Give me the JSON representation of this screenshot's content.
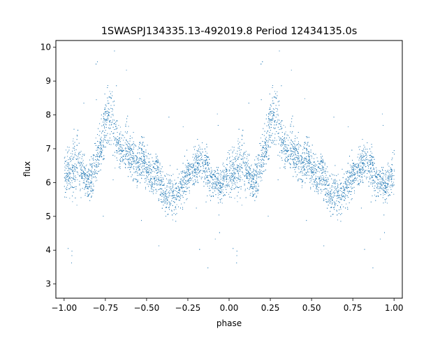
{
  "chart_data": {
    "type": "scatter",
    "title": "1SWASPJ134335.13-492019.8 Period 12434135.0s",
    "xlabel": "phase",
    "ylabel": "flux",
    "xlim": [
      -1.05,
      1.05
    ],
    "ylim": [
      2.58,
      10.2
    ],
    "x_ticks": [
      -1.0,
      -0.75,
      -0.5,
      -0.25,
      0.0,
      0.25,
      0.5,
      0.75,
      1.0
    ],
    "x_tick_labels": [
      "−1.00",
      "−0.75",
      "−0.50",
      "−0.25",
      "0.00",
      "0.25",
      "0.50",
      "0.75",
      "1.00"
    ],
    "y_ticks": [
      3,
      4,
      5,
      6,
      7,
      8,
      9,
      10
    ],
    "y_tick_labels": [
      "3",
      "4",
      "5",
      "6",
      "7",
      "8",
      "9",
      "10"
    ],
    "grid": false,
    "legend": "none",
    "marker_color": "#1f77b4",
    "profile": {
      "description_phase": [
        0.0,
        0.02,
        0.05,
        0.08,
        0.11,
        0.14,
        0.17,
        0.2,
        0.23,
        0.26,
        0.29,
        0.32,
        0.35,
        0.38,
        0.41,
        0.44,
        0.47,
        0.5,
        0.53,
        0.56,
        0.59,
        0.62,
        0.65,
        0.68,
        0.71,
        0.74,
        0.77,
        0.8,
        0.83,
        0.86,
        0.89,
        0.92,
        0.95,
        0.98,
        1.0
      ],
      "median_flux": [
        6.2,
        6.3,
        6.4,
        6.6,
        6.3,
        6.0,
        6.2,
        6.8,
        7.3,
        7.9,
        8.0,
        7.2,
        7.0,
        7.1,
        6.7,
        6.5,
        6.8,
        6.4,
        6.1,
        6.4,
        5.9,
        5.7,
        5.6,
        5.5,
        5.9,
        6.1,
        6.4,
        6.5,
        6.6,
        6.4,
        6.1,
        6.0,
        5.9,
        6.2,
        6.2
      ],
      "spread": [
        0.55,
        0.6,
        0.7,
        0.7,
        0.6,
        0.5,
        0.6,
        0.6,
        0.7,
        0.7,
        0.8,
        0.6,
        0.6,
        0.6,
        0.6,
        0.5,
        0.6,
        0.5,
        0.5,
        0.6,
        0.5,
        0.55,
        0.6,
        0.55,
        0.5,
        0.5,
        0.5,
        0.5,
        0.5,
        0.5,
        0.5,
        0.5,
        0.5,
        0.55,
        0.55
      ],
      "points_per_period": 4200
    }
  }
}
